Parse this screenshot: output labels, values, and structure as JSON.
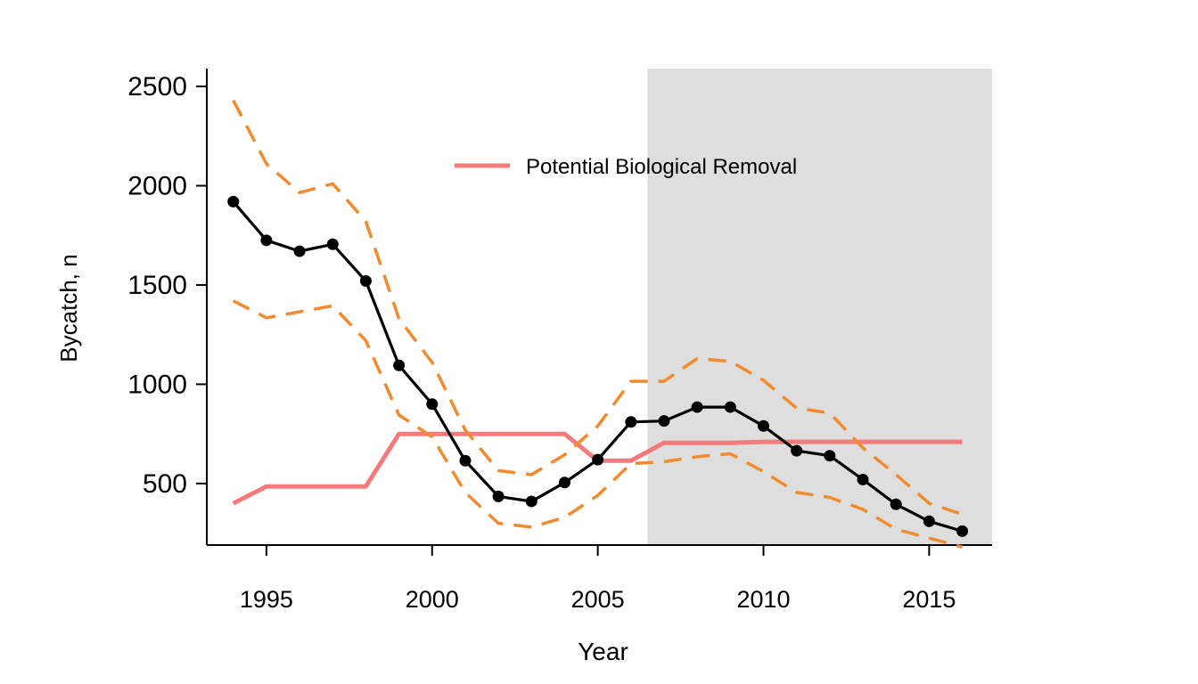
{
  "chart_data": {
    "type": "line",
    "title": "",
    "xlabel": "Year",
    "ylabel": "Bycatch, n",
    "xlim": [
      1993.2,
      2016.9
    ],
    "ylim": [
      190,
      2590
    ],
    "xticks": [
      1995,
      2000,
      2005,
      2010,
      2015
    ],
    "yticks": [
      500,
      1000,
      1500,
      2000,
      2500
    ],
    "x": [
      1994,
      1995,
      1996,
      1997,
      1998,
      1999,
      2000,
      2001,
      2002,
      2003,
      2004,
      2005,
      2006,
      2007,
      2008,
      2009,
      2010,
      2011,
      2012,
      2013,
      2014,
      2015,
      2016
    ],
    "shaded_region": {
      "x_from": 2006.5,
      "x_to": 2016.9,
      "color": "#dedede"
    },
    "series": [
      {
        "role": "estimate",
        "style": "solid-line-with-points",
        "color": "#000000",
        "values": [
          1920,
          1725,
          1670,
          1705,
          1520,
          1095,
          900,
          615,
          435,
          410,
          505,
          620,
          810,
          815,
          885,
          885,
          790,
          665,
          640,
          520,
          395,
          310,
          260
        ]
      },
      {
        "role": "upper-bound",
        "style": "dashed",
        "color": "#f28a2e",
        "values": [
          2430,
          2110,
          1965,
          2010,
          1820,
          1330,
          1110,
          770,
          565,
          545,
          645,
          790,
          1015,
          1015,
          1130,
          1115,
          1020,
          880,
          855,
          680,
          545,
          400,
          345
        ]
      },
      {
        "role": "lower-bound",
        "style": "dashed",
        "color": "#f28a2e",
        "values": [
          1420,
          1335,
          1365,
          1395,
          1220,
          845,
          735,
          455,
          300,
          280,
          330,
          440,
          600,
          610,
          635,
          650,
          560,
          455,
          430,
          370,
          270,
          225,
          180
        ]
      },
      {
        "name": "Potential Biological Removal",
        "style": "step-line",
        "color": "#f47b7b",
        "values": [
          400,
          485,
          485,
          485,
          485,
          750,
          750,
          750,
          750,
          750,
          750,
          615,
          615,
          705,
          705,
          705,
          710,
          710,
          710,
          710,
          710,
          710,
          710
        ]
      }
    ],
    "legend": {
      "position": "top-center",
      "entries": [
        "Potential Biological Removal"
      ]
    },
    "grid": false
  }
}
